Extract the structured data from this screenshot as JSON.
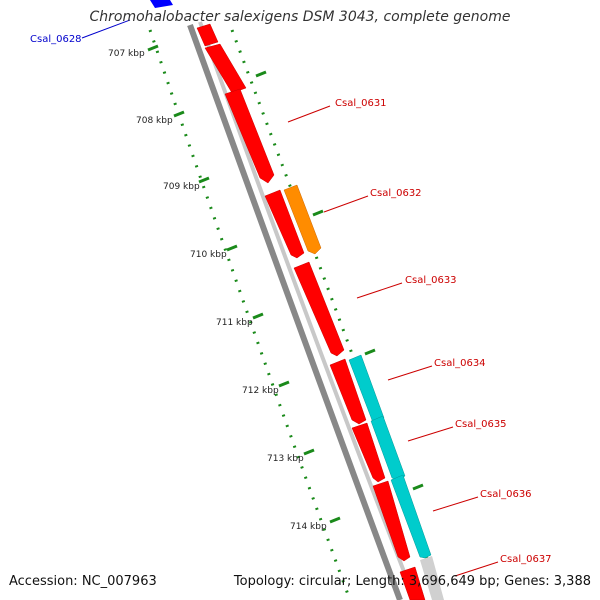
{
  "title": "Chromohalobacter salexigens DSM 3043, complete genome",
  "footer": {
    "accession": "Accession: NC_007963",
    "topology": "Topology: circular; Length: 3,696,649 bp; Genes: 3,388"
  },
  "tick_labels": [
    "707 kbp",
    "708 kbp",
    "709 kbp",
    "710 kbp",
    "711 kbp",
    "712 kbp",
    "713 kbp",
    "714 kbp"
  ],
  "gene_labels": [
    {
      "text": "Csal_0628",
      "color": "#0000cc"
    },
    {
      "text": "Csal_0631",
      "color": "#cc0000"
    },
    {
      "text": "Csal_0632",
      "color": "#cc0000"
    },
    {
      "text": "Csal_0633",
      "color": "#cc0000"
    },
    {
      "text": "Csal_0634",
      "color": "#cc0000"
    },
    {
      "text": "Csal_0635",
      "color": "#cc0000"
    },
    {
      "text": "Csal_0636",
      "color": "#cc0000"
    },
    {
      "text": "Csal_0637",
      "color": "#cc0000"
    }
  ],
  "colors": {
    "backbone": "#888888",
    "gene_red": "#ff0000",
    "gene_orange": "#ff8c00",
    "gene_cyan": "#00cccc",
    "gene_blue": "#0000ff",
    "gc_green": "#1a8a1a"
  }
}
